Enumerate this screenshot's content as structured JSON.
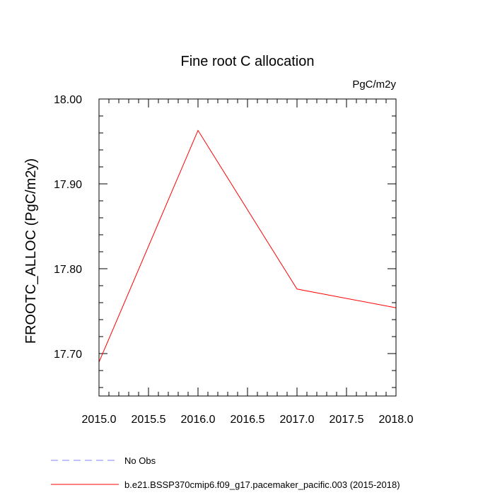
{
  "chart_data": {
    "type": "line",
    "title": "Fine root C allocation",
    "units_label": "PgC/m2y",
    "ylabel": "FROOTC_ALLOC  (PgC/m2y)",
    "xlabel": "",
    "xlim": [
      2015.0,
      2018.0
    ],
    "ylim": [
      17.65,
      18.0
    ],
    "x_ticks": [
      "2015.0",
      "2015.5",
      "2016.0",
      "2016.5",
      "2017.0",
      "2017.5",
      "2018.0"
    ],
    "y_ticks": [
      "17.70",
      "17.80",
      "17.90",
      "18.00"
    ],
    "grid": false,
    "x": [
      2015.0,
      2016.0,
      2017.0,
      2018.0
    ],
    "series": [
      {
        "name": "b.e21.BSSP370cmip6.f09_g17.pacemaker_pacific.003 (2015-2018)",
        "color": "#ff0000",
        "values": [
          17.69,
          17.963,
          17.776,
          17.754
        ]
      }
    ],
    "legend": {
      "placement": "bottom-left",
      "entries": [
        {
          "label": "No Obs",
          "color": "#8080ff",
          "style": "dashed"
        },
        {
          "label": "b.e21.BSSP370cmip6.f09_g17.pacemaker_pacific.003 (2015-2018)",
          "color": "#ff0000",
          "style": "solid"
        }
      ]
    }
  }
}
